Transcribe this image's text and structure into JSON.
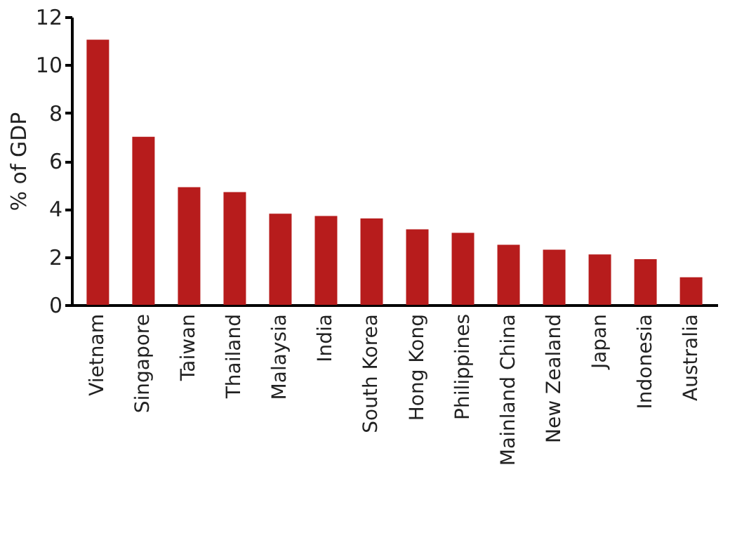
{
  "chart_data": {
    "type": "bar",
    "ylabel": "% of GDP",
    "categories": [
      "Vietnam",
      "Singapore",
      "Taiwan",
      "Thailand",
      "Malaysia",
      "India",
      "South Korea",
      "Hong Kong",
      "Philippines",
      "Mainland China",
      "New Zealand",
      "Japan",
      "Indonesia",
      "Australia"
    ],
    "values": [
      11.05,
      7.0,
      4.9,
      4.7,
      3.8,
      3.7,
      3.6,
      3.15,
      3.0,
      2.5,
      2.3,
      2.1,
      1.9,
      1.15
    ],
    "color": "#b71c1c",
    "ylim": [
      0,
      12
    ],
    "yticks": [
      0,
      2,
      4,
      6,
      8,
      10,
      12
    ],
    "grid": false
  }
}
